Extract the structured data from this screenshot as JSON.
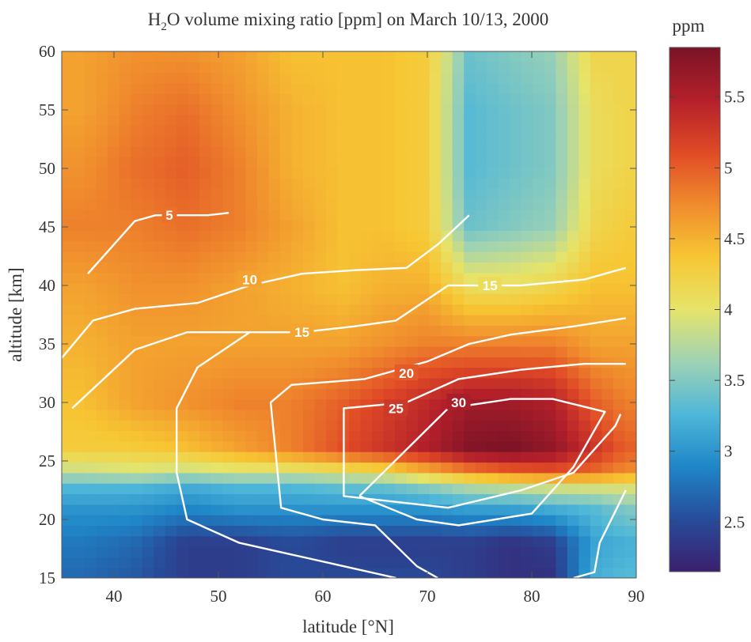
{
  "chart_data": {
    "type": "heatmap",
    "title_main": "H",
    "title_sub": "2",
    "title_rest": "O volume mixing ratio [ppm] on March 10/13, 2000",
    "xlabel": "latitude [°N]",
    "ylabel": "altitude [km]",
    "xlim": [
      35,
      90
    ],
    "ylim": [
      15,
      60
    ],
    "xticks": [
      40,
      50,
      60,
      70,
      80,
      90
    ],
    "yticks": [
      15,
      20,
      25,
      30,
      35,
      40,
      45,
      50,
      55,
      60
    ],
    "colorbar": {
      "label": "ppm",
      "range": [
        2.15,
        5.85
      ],
      "ticks": [
        2.5,
        3,
        3.5,
        4,
        4.5,
        5,
        5.5
      ],
      "colormap": [
        "#3b1f6e",
        "#274c9a",
        "#1f86c8",
        "#4fb7d8",
        "#9ed2b4",
        "#e6e46a",
        "#f7c633",
        "#f08b2d",
        "#e04a26",
        "#b3202a",
        "#7a1326"
      ]
    },
    "heat_values": [
      {
        "lat": 37,
        "profile": [
          [
            15,
            2.7
          ],
          [
            18,
            2.8
          ],
          [
            21,
            3.0
          ],
          [
            23,
            3.3
          ],
          [
            24,
            3.8
          ],
          [
            26,
            4.3
          ],
          [
            30,
            4.4
          ],
          [
            35,
            4.5
          ],
          [
            40,
            4.6
          ],
          [
            45,
            4.8
          ],
          [
            50,
            4.7
          ],
          [
            55,
            4.6
          ],
          [
            60,
            4.6
          ]
        ]
      },
      {
        "lat": 42,
        "profile": [
          [
            15,
            2.6
          ],
          [
            18,
            2.7
          ],
          [
            21,
            3.0
          ],
          [
            23,
            3.3
          ],
          [
            24,
            3.9
          ],
          [
            26,
            4.3
          ],
          [
            30,
            4.6
          ],
          [
            35,
            4.6
          ],
          [
            40,
            4.7
          ],
          [
            45,
            4.8
          ],
          [
            50,
            4.9
          ],
          [
            55,
            4.8
          ],
          [
            60,
            4.7
          ]
        ]
      },
      {
        "lat": 47,
        "profile": [
          [
            15,
            2.4
          ],
          [
            18,
            2.4
          ],
          [
            21,
            2.9
          ],
          [
            23,
            3.2
          ],
          [
            24,
            3.8
          ],
          [
            26,
            4.4
          ],
          [
            30,
            4.7
          ],
          [
            35,
            4.6
          ],
          [
            40,
            4.7
          ],
          [
            45,
            4.9
          ],
          [
            50,
            5.0
          ],
          [
            55,
            4.9
          ],
          [
            60,
            4.7
          ]
        ]
      },
      {
        "lat": 52,
        "profile": [
          [
            15,
            2.4
          ],
          [
            18,
            2.4
          ],
          [
            21,
            3.0
          ],
          [
            23,
            3.3
          ],
          [
            24,
            3.9
          ],
          [
            26,
            4.6
          ],
          [
            30,
            4.8
          ],
          [
            35,
            4.6
          ],
          [
            40,
            4.6
          ],
          [
            45,
            4.8
          ],
          [
            50,
            4.8
          ],
          [
            55,
            4.7
          ],
          [
            60,
            4.6
          ]
        ]
      },
      {
        "lat": 57,
        "profile": [
          [
            15,
            2.5
          ],
          [
            18,
            2.5
          ],
          [
            21,
            3.0
          ],
          [
            23,
            3.3
          ],
          [
            24,
            3.9
          ],
          [
            26,
            4.8
          ],
          [
            30,
            4.8
          ],
          [
            35,
            4.6
          ],
          [
            40,
            4.5
          ],
          [
            45,
            4.6
          ],
          [
            50,
            4.5
          ],
          [
            55,
            4.5
          ],
          [
            60,
            4.4
          ]
        ]
      },
      {
        "lat": 62,
        "profile": [
          [
            15,
            2.5
          ],
          [
            18,
            2.4
          ],
          [
            21,
            3.0
          ],
          [
            23,
            3.4
          ],
          [
            24,
            4.0
          ],
          [
            26,
            5.1
          ],
          [
            30,
            5.0
          ],
          [
            35,
            4.6
          ],
          [
            40,
            4.4
          ],
          [
            45,
            4.4
          ],
          [
            50,
            4.4
          ],
          [
            55,
            4.4
          ],
          [
            60,
            4.4
          ]
        ]
      },
      {
        "lat": 66,
        "profile": [
          [
            15,
            2.5
          ],
          [
            18,
            2.4
          ],
          [
            21,
            3.0
          ],
          [
            23,
            3.4
          ],
          [
            24,
            4.1
          ],
          [
            26,
            5.3
          ],
          [
            30,
            5.2
          ],
          [
            35,
            4.7
          ],
          [
            40,
            4.5
          ],
          [
            45,
            4.4
          ],
          [
            50,
            4.4
          ],
          [
            55,
            4.4
          ],
          [
            60,
            4.4
          ]
        ]
      },
      {
        "lat": 70,
        "profile": [
          [
            15,
            2.5
          ],
          [
            18,
            2.4
          ],
          [
            21,
            3.0
          ],
          [
            23,
            3.6
          ],
          [
            24,
            4.4
          ],
          [
            26,
            5.5
          ],
          [
            30,
            5.4
          ],
          [
            35,
            4.8
          ],
          [
            40,
            4.5
          ],
          [
            45,
            4.3
          ],
          [
            50,
            4.3
          ],
          [
            55,
            4.3
          ],
          [
            60,
            4.3
          ]
        ]
      },
      {
        "lat": 74,
        "profile": [
          [
            15,
            2.4
          ],
          [
            18,
            2.4
          ],
          [
            21,
            3.1
          ],
          [
            23,
            3.8
          ],
          [
            24,
            4.7
          ],
          [
            26,
            5.8
          ],
          [
            30,
            5.6
          ],
          [
            35,
            4.8
          ],
          [
            40,
            4.1
          ],
          [
            45,
            3.4
          ],
          [
            50,
            3.3
          ],
          [
            55,
            3.3
          ],
          [
            60,
            3.4
          ]
        ]
      },
      {
        "lat": 78,
        "profile": [
          [
            15,
            2.3
          ],
          [
            18,
            2.3
          ],
          [
            21,
            3.1
          ],
          [
            23,
            3.9
          ],
          [
            24,
            4.9
          ],
          [
            26,
            5.85
          ],
          [
            30,
            5.6
          ],
          [
            35,
            4.8
          ],
          [
            40,
            4.1
          ],
          [
            45,
            3.5
          ],
          [
            50,
            3.4
          ],
          [
            55,
            3.4
          ],
          [
            60,
            3.5
          ]
        ]
      },
      {
        "lat": 82,
        "profile": [
          [
            15,
            2.3
          ],
          [
            18,
            2.4
          ],
          [
            21,
            3.2
          ],
          [
            23,
            4.0
          ],
          [
            24,
            5.0
          ],
          [
            26,
            5.7
          ],
          [
            30,
            5.5
          ],
          [
            35,
            4.8
          ],
          [
            40,
            4.2
          ],
          [
            45,
            3.6
          ],
          [
            50,
            3.5
          ],
          [
            55,
            3.5
          ],
          [
            60,
            3.6
          ]
        ]
      },
      {
        "lat": 86,
        "profile": [
          [
            15,
            3.2
          ],
          [
            18,
            3.1
          ],
          [
            21,
            3.3
          ],
          [
            23,
            4.0
          ],
          [
            24,
            4.9
          ],
          [
            26,
            5.3
          ],
          [
            30,
            5.0
          ],
          [
            35,
            4.6
          ],
          [
            40,
            4.4
          ],
          [
            45,
            4.2
          ],
          [
            50,
            4.1
          ],
          [
            55,
            4.1
          ],
          [
            60,
            4.2
          ]
        ]
      },
      {
        "lat": 89,
        "profile": [
          [
            15,
            3.3
          ],
          [
            18,
            3.2
          ],
          [
            21,
            3.5
          ],
          [
            23,
            4.0
          ],
          [
            24,
            4.7
          ],
          [
            26,
            5.0
          ],
          [
            30,
            4.8
          ],
          [
            35,
            4.6
          ],
          [
            40,
            4.4
          ],
          [
            45,
            4.3
          ],
          [
            50,
            4.2
          ],
          [
            55,
            4.2
          ],
          [
            60,
            4.2
          ]
        ]
      }
    ],
    "contours": [
      {
        "level": "5",
        "points": [
          [
            37.5,
            41
          ],
          [
            42,
            45.5
          ],
          [
            44,
            46
          ],
          [
            49,
            46
          ],
          [
            51,
            46.2
          ]
        ],
        "label": {
          "lat": 45.3,
          "alt": 46
        }
      },
      {
        "level": "10",
        "points": [
          [
            35,
            33.8
          ],
          [
            38,
            37
          ],
          [
            42,
            38
          ],
          [
            48,
            38.5
          ],
          [
            53,
            40
          ],
          [
            58,
            41
          ],
          [
            63,
            41.3
          ],
          [
            68,
            41.5
          ],
          [
            71,
            43.5
          ],
          [
            74,
            46
          ]
        ],
        "label": {
          "lat": 53,
          "alt": 40.5
        }
      },
      {
        "level": "15",
        "points": [
          [
            36,
            29.5
          ],
          [
            42,
            34.5
          ],
          [
            47,
            36
          ],
          [
            53,
            36
          ],
          [
            58,
            36
          ],
          [
            63,
            36.5
          ],
          [
            67,
            37
          ],
          [
            72,
            40
          ],
          [
            79,
            40
          ],
          [
            85,
            40.5
          ],
          [
            89,
            41.5
          ]
        ],
        "label": {
          "lat": 76,
          "alt": 40
        }
      },
      {
        "level": "15",
        "points": [
          [
            53,
            36
          ],
          [
            48,
            33
          ],
          [
            46,
            29.5
          ],
          [
            46,
            24
          ],
          [
            47,
            20
          ],
          [
            52,
            18
          ],
          [
            56,
            17.2
          ],
          [
            62,
            16
          ],
          [
            67,
            15
          ]
        ],
        "label": {
          "lat": 58,
          "alt": 36
        }
      },
      {
        "level": "20",
        "points": [
          [
            89,
            37.2
          ],
          [
            84,
            36.5
          ],
          [
            78,
            35.8
          ],
          [
            74,
            35
          ],
          [
            70,
            33.5
          ],
          [
            64,
            32
          ],
          [
            57,
            31.5
          ],
          [
            55,
            30
          ],
          [
            56,
            21
          ],
          [
            60,
            20
          ],
          [
            65,
            19.5
          ],
          [
            69,
            16
          ],
          [
            71,
            15
          ]
        ],
        "label": {
          "lat": 68,
          "alt": 32.5
        }
      },
      {
        "level": "25",
        "points": [
          [
            89,
            33.3
          ],
          [
            85,
            33.3
          ],
          [
            79,
            32.8
          ],
          [
            73,
            32
          ],
          [
            68,
            30
          ],
          [
            62,
            29.5
          ],
          [
            62,
            22
          ],
          [
            67,
            21.5
          ],
          [
            72,
            21
          ],
          [
            79,
            22.5
          ],
          [
            84,
            24
          ],
          [
            88,
            28
          ],
          [
            88.5,
            29
          ]
        ],
        "label": {
          "lat": 67,
          "alt": 29.5
        }
      },
      {
        "level": "30",
        "points": [
          [
            63.5,
            22
          ],
          [
            72,
            29.5
          ],
          [
            78,
            30.3
          ],
          [
            82,
            30.3
          ],
          [
            87,
            29.2
          ],
          [
            84,
            24.5
          ],
          [
            80,
            20.5
          ],
          [
            73,
            19.5
          ],
          [
            69,
            20
          ],
          [
            63.5,
            22
          ]
        ],
        "label": {
          "lat": 73,
          "alt": 30
        }
      },
      {
        "level": "",
        "points": [
          [
            84,
            15
          ],
          [
            86,
            15.5
          ],
          [
            86.5,
            18
          ],
          [
            89,
            22.5
          ]
        ],
        "label": null
      }
    ]
  }
}
